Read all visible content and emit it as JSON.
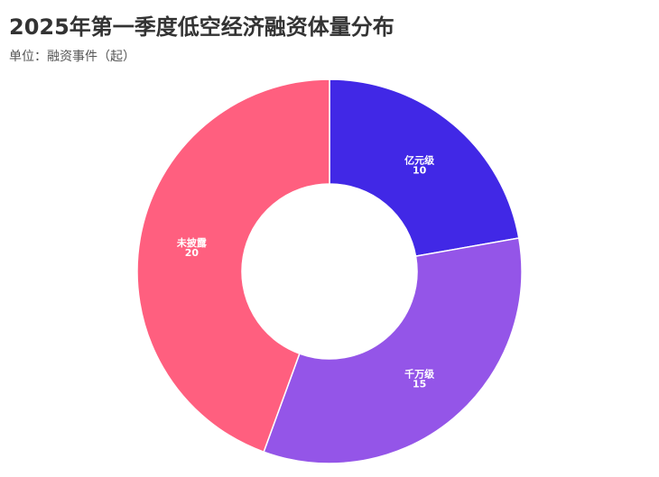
{
  "chart_data": {
    "type": "pie",
    "variant": "donut",
    "title": "2025年第一季度低空经济融资体量分布",
    "subtitle": "单位：融资事件（起）",
    "slices": [
      {
        "label": "亿元级",
        "value": 10,
        "color": "#4128E6"
      },
      {
        "label": "千万级",
        "value": 15,
        "color": "#9455E8"
      },
      {
        "label": "未披露",
        "value": 20,
        "color": "#FF5F7F"
      }
    ],
    "start_angle": "top",
    "direction": "clockwise",
    "legend": "none"
  }
}
